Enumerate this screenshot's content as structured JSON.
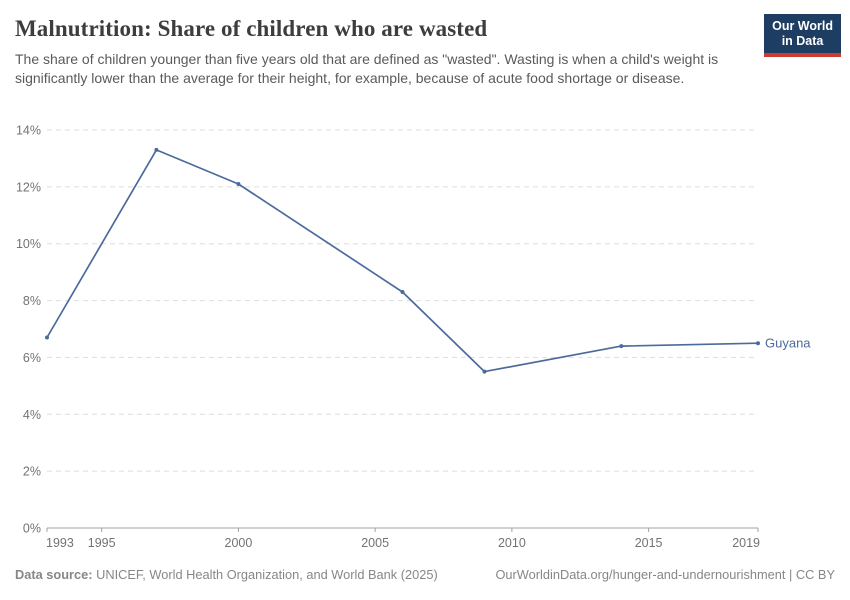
{
  "header": {
    "title": "Malnutrition: Share of children who are wasted",
    "subtitle": "The share of children younger than five years old that are defined as \"wasted\". Wasting is when a child's weight is significantly lower than the average for their height, for example, because of acute food shortage or disease.",
    "logo": {
      "line1": "Our World",
      "line2": "in Data",
      "bg_color": "#1d3d63",
      "stripe_color": "#cc3b33"
    }
  },
  "chart_data": {
    "type": "line",
    "title": "Malnutrition: Share of children who are wasted",
    "xlabel": "",
    "ylabel": "",
    "xlim": [
      1993,
      2019
    ],
    "ylim": [
      0,
      14
    ],
    "x_ticks": [
      1993,
      1995,
      2000,
      2005,
      2010,
      2015,
      2019
    ],
    "y_ticks": [
      0,
      2,
      4,
      6,
      8,
      10,
      12,
      14
    ],
    "y_tick_suffix": "%",
    "grid": "dashed-horizontal",
    "legend_position": "end-of-line-label",
    "series": [
      {
        "name": "Guyana",
        "color": "#4C6A9C",
        "points": [
          [
            1993,
            6.7
          ],
          [
            1997,
            13.3
          ],
          [
            2000,
            12.1
          ],
          [
            2006,
            8.3
          ],
          [
            2009,
            5.5
          ],
          [
            2014,
            6.4
          ],
          [
            2019,
            6.5
          ]
        ]
      }
    ]
  },
  "footer": {
    "source_label": "Data source:",
    "source_text": " UNICEF, World Health Organization, and World Bank (2025)",
    "link_text": "OurWorldinData.org/hunger-and-undernourishment | CC BY"
  }
}
